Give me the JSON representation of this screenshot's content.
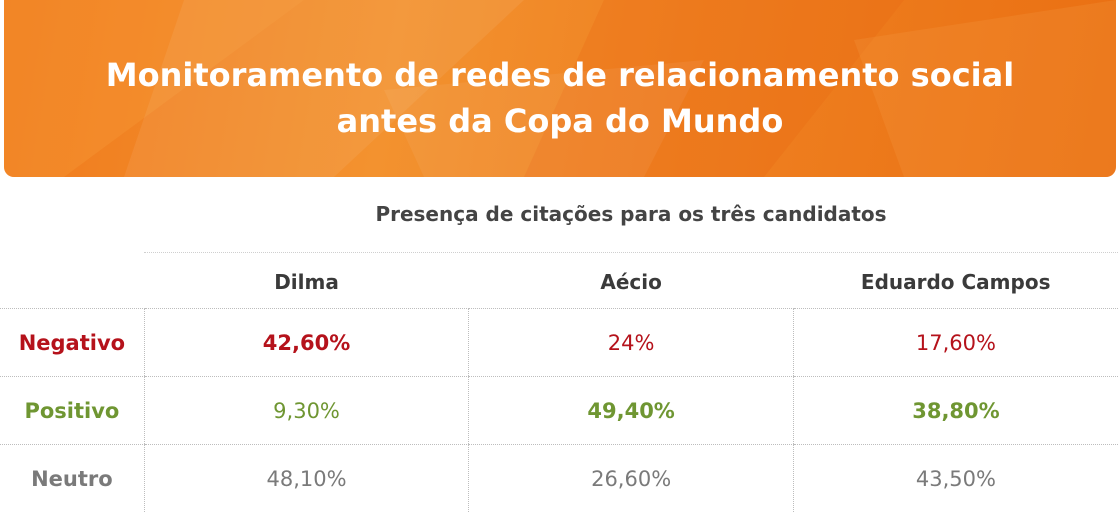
{
  "banner": {
    "title_line1": "Monitoramento de redes de relacionamento social",
    "title_line2": "antes da Copa do Mundo"
  },
  "colors": {
    "banner": "#f07a1c",
    "negativo": "#b5121b",
    "positivo": "#6f9632",
    "neutro": "#7a7a7a"
  },
  "chart_data": {
    "type": "table",
    "title": "Presença de citações para os três candidatos",
    "columns": [
      "Dilma",
      "Aécio",
      "Eduardo Campos"
    ],
    "rows": [
      {
        "label": "Negativo",
        "values": [
          "42,60%",
          "24%",
          "17,60%"
        ],
        "highlight": 0
      },
      {
        "label": "Positivo",
        "values": [
          "9,30%",
          "49,40%",
          "38,80%"
        ],
        "highlight": [
          1,
          2
        ]
      },
      {
        "label": "Neutro",
        "values": [
          "48,10%",
          "26,60%",
          "43,50%"
        ],
        "highlight": []
      }
    ]
  }
}
